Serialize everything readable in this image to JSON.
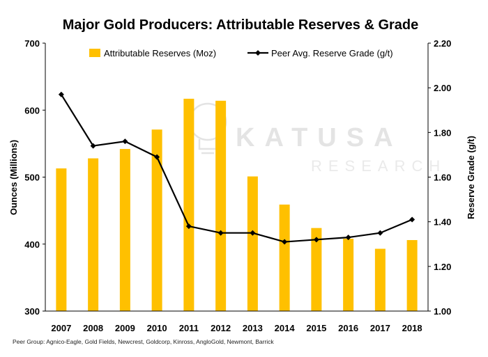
{
  "chart_data": {
    "type": "bar",
    "title": "Major Gold Producers: Attributable Reserves & Grade",
    "categories": [
      "2007",
      "2008",
      "2009",
      "2010",
      "2011",
      "2012",
      "2013",
      "2014",
      "2015",
      "2016",
      "2017",
      "2018"
    ],
    "ylabel": "Ounces (Millions)",
    "y2label": "Reserve Grade (g/t)",
    "ylim": [
      300,
      700
    ],
    "y2lim": [
      1.0,
      2.2
    ],
    "yticks": [
      "300",
      "400",
      "500",
      "600",
      "700"
    ],
    "y2ticks": [
      "1.00",
      "1.20",
      "1.40",
      "1.60",
      "1.80",
      "2.00",
      "2.20"
    ],
    "grid": false,
    "legend_position": "top",
    "series": [
      {
        "name": "Attributable Reserves (Moz)",
        "type": "bar",
        "axis": "left",
        "color": "#FFC000",
        "values": [
          513,
          528,
          542,
          571,
          617,
          614,
          501,
          459,
          424,
          408,
          393,
          406
        ]
      },
      {
        "name": "Peer Avg. Reserve Grade (g/t)",
        "type": "line",
        "axis": "right",
        "color": "#000000",
        "marker": "diamond",
        "values": [
          1.97,
          1.74,
          1.76,
          1.69,
          1.38,
          1.35,
          1.35,
          1.31,
          1.32,
          1.33,
          1.35,
          1.41
        ]
      }
    ],
    "footnote": "Peer Group: Agnico-Eagle, Gold Fields, Newcrest, Goldcorp, Kinross, AngloGold, Newmont, Barrick"
  },
  "watermark": {
    "brand": "KATUSA",
    "sub": "RESEARCH"
  }
}
